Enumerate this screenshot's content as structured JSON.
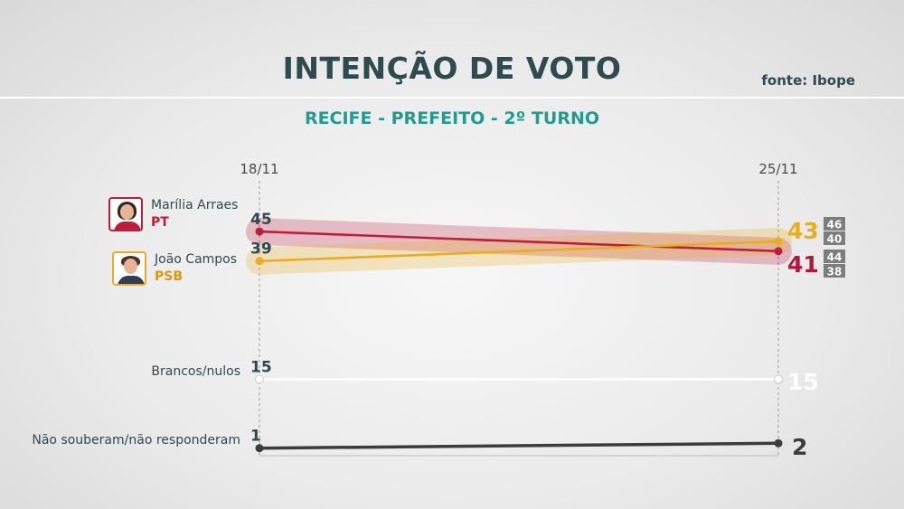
{
  "header": {
    "title": "INTENÇÃO DE VOTO",
    "source": "fonte: Ibope",
    "subtitle": "RECIFE - PREFEITO - 2º TURNO"
  },
  "candidates": [
    {
      "name": "Marília Arraes",
      "party": "PT",
      "color": "#c01d3c",
      "icon": "woman-portrait-icon"
    },
    {
      "name": "João Campos",
      "party": "PSB",
      "color": "#eaad1e",
      "icon": "man-portrait-icon"
    }
  ],
  "other_labels": [
    "Brancos/nulos",
    "Não souberam/não responderam"
  ],
  "chart_data": {
    "type": "line",
    "x": [
      "18/11",
      "25/11"
    ],
    "series": [
      {
        "name": "Marília Arraes",
        "party": "PT",
        "values": [
          45,
          41
        ],
        "margin": [
          38,
          44
        ],
        "color": "#c01d3c"
      },
      {
        "name": "João Campos",
        "party": "PSB",
        "values": [
          39,
          43
        ],
        "margin": [
          40,
          46
        ],
        "color": "#eaad1e"
      },
      {
        "name": "Brancos/nulos",
        "values": [
          15,
          15
        ],
        "color": "#ffffff"
      },
      {
        "name": "Não souberam/não responderam",
        "values": [
          1,
          2
        ],
        "color": "#3c3c3c"
      }
    ],
    "grid": false,
    "legend": "left"
  }
}
